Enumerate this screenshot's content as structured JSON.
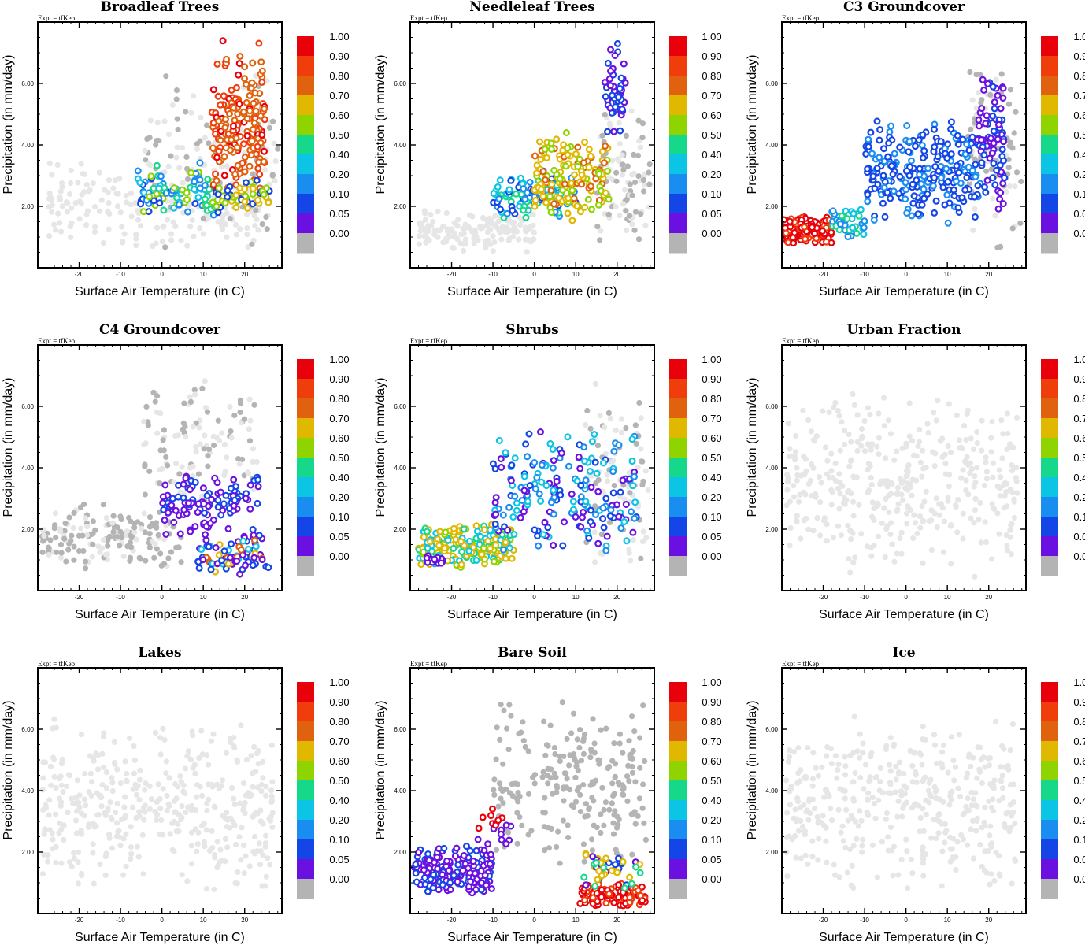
{
  "figure": {
    "expt_label": "Expt = tfKep"
  },
  "colorbar": {
    "levels": [
      {
        "label": "1.00",
        "color": "#e8000b"
      },
      {
        "label": "0.90",
        "color": "#f03d0c"
      },
      {
        "label": "0.80",
        "color": "#e0620e"
      },
      {
        "label": "0.70",
        "color": "#e1b800"
      },
      {
        "label": "0.60",
        "color": "#8fd400"
      },
      {
        "label": "0.50",
        "color": "#15d88a"
      },
      {
        "label": "0.40",
        "color": "#0cc4e3"
      },
      {
        "label": "0.20",
        "color": "#1a8ef0"
      },
      {
        "label": "0.10",
        "color": "#1445e6"
      },
      {
        "label": "0.05",
        "color": "#6a10e0"
      },
      {
        "label": "0.00",
        "color": "#b4b4b4"
      }
    ]
  },
  "chart_data": [
    {
      "type": "scatter",
      "title": "Broadleaf Trees",
      "xlabel": "Surface Air Temperature (in C)",
      "ylabel": "Precipitation (in mm/day)",
      "xlim": [
        -30,
        29
      ],
      "ylim": [
        0,
        8
      ],
      "xticks": [
        "-20",
        "-10",
        "0",
        "10",
        "20"
      ],
      "yticks": [
        "2.00",
        "4.00",
        "6.00"
      ],
      "clusters": [
        {
          "x": [
            -28,
            25
          ],
          "y": [
            0.5,
            3.5
          ],
          "n": 200,
          "colors": [
            "#e6e6e6"
          ]
        },
        {
          "x": [
            -5,
            28
          ],
          "y": [
            0.3,
            6.5
          ],
          "n": 120,
          "colors": [
            "#e6e6e6",
            "#b4b4b4"
          ]
        },
        {
          "x": [
            -6,
            13
          ],
          "y": [
            1.5,
            3.5
          ],
          "n": 90,
          "colors": [
            "#0cc4e3",
            "#15d88a",
            "#8fd400",
            "#1a8ef0",
            "#1445e6"
          ]
        },
        {
          "x": [
            12,
            25
          ],
          "y": [
            2.0,
            7.5
          ],
          "n": 180,
          "colors": [
            "#e0620e",
            "#e0620e",
            "#f03d0c",
            "#e8000b"
          ]
        },
        {
          "x": [
            13,
            26
          ],
          "y": [
            1.6,
            3.0
          ],
          "n": 50,
          "colors": [
            "#e1b800",
            "#8fd400",
            "#1445e6"
          ]
        }
      ]
    },
    {
      "type": "scatter",
      "title": "Needleleaf Trees",
      "xlabel": "Surface Air Temperature (in C)",
      "ylabel": "Precipitation (in mm/day)",
      "xlim": [
        -30,
        29
      ],
      "ylim": [
        0,
        8
      ],
      "xticks": [
        "-20",
        "-10",
        "0",
        "10",
        "20"
      ],
      "yticks": [
        "2.00",
        "4.00",
        "6.00"
      ],
      "clusters": [
        {
          "x": [
            -28,
            0
          ],
          "y": [
            0.5,
            2.0
          ],
          "n": 150,
          "colors": [
            "#e6e6e6"
          ]
        },
        {
          "x": [
            15,
            28
          ],
          "y": [
            0.3,
            5.5
          ],
          "n": 100,
          "colors": [
            "#e6e6e6",
            "#b4b4b4"
          ]
        },
        {
          "x": [
            -10,
            10
          ],
          "y": [
            1.5,
            3.2
          ],
          "n": 110,
          "colors": [
            "#1a8ef0",
            "#0cc4e3",
            "#15d88a",
            "#1445e6"
          ]
        },
        {
          "x": [
            0,
            18
          ],
          "y": [
            1.5,
            4.5
          ],
          "n": 150,
          "colors": [
            "#e1b800",
            "#e0620e",
            "#8fd400",
            "#e1b800"
          ]
        },
        {
          "x": [
            17,
            22
          ],
          "y": [
            4.0,
            7.5
          ],
          "n": 50,
          "colors": [
            "#6a10e0",
            "#1445e6"
          ]
        }
      ]
    },
    {
      "type": "scatter",
      "title": "C3 Groundcover",
      "xlabel": "Surface Air Temperature (in C)",
      "ylabel": "Precipitation (in mm/day)",
      "xlim": [
        -30,
        29
      ],
      "ylim": [
        0,
        8
      ],
      "xticks": [
        "-20",
        "-10",
        "0",
        "10",
        "20"
      ],
      "yticks": [
        "2.00",
        "4.00",
        "6.00"
      ],
      "clusters": [
        {
          "x": [
            15,
            28
          ],
          "y": [
            0.5,
            7.0
          ],
          "n": 80,
          "colors": [
            "#e6e6e6",
            "#b4b4b4"
          ]
        },
        {
          "x": [
            -30,
            -18
          ],
          "y": [
            0.7,
            1.7
          ],
          "n": 180,
          "colors": [
            "#e8000b",
            "#e8000b",
            "#f03d0c"
          ]
        },
        {
          "x": [
            -18,
            -10
          ],
          "y": [
            1.0,
            2.0
          ],
          "n": 50,
          "colors": [
            "#0cc4e3",
            "#15d88a",
            "#1a8ef0"
          ]
        },
        {
          "x": [
            -10,
            18
          ],
          "y": [
            1.2,
            5.0
          ],
          "n": 260,
          "colors": [
            "#1445e6",
            "#1a8ef0",
            "#1445e6"
          ]
        },
        {
          "x": [
            17,
            24
          ],
          "y": [
            1.8,
            6.5
          ],
          "n": 80,
          "colors": [
            "#6a10e0",
            "#1445e6"
          ]
        }
      ]
    },
    {
      "type": "scatter",
      "title": "C4 Groundcover",
      "xlabel": "Surface Air Temperature (in C)",
      "ylabel": "Precipitation (in mm/day)",
      "xlim": [
        -30,
        29
      ],
      "ylim": [
        0,
        8
      ],
      "xticks": [
        "-20",
        "-10",
        "0",
        "10",
        "20"
      ],
      "yticks": [
        "2.00",
        "4.00",
        "6.00"
      ],
      "clusters": [
        {
          "x": [
            -29,
            5
          ],
          "y": [
            0.5,
            3.0
          ],
          "n": 170,
          "colors": [
            "#e6e6e6",
            "#b4b4b4",
            "#b4b4b4"
          ]
        },
        {
          "x": [
            -5,
            23
          ],
          "y": [
            2.5,
            7.0
          ],
          "n": 120,
          "colors": [
            "#e6e6e6",
            "#b4b4b4"
          ]
        },
        {
          "x": [
            0,
            25
          ],
          "y": [
            1.5,
            4.0
          ],
          "n": 110,
          "colors": [
            "#6a10e0",
            "#6a10e0",
            "#1445e6"
          ]
        },
        {
          "x": [
            8,
            26
          ],
          "y": [
            0.4,
            1.8
          ],
          "n": 70,
          "colors": [
            "#e1b800",
            "#0cc4e3",
            "#e0620e",
            "#1445e6",
            "#6a10e0"
          ]
        }
      ]
    },
    {
      "type": "scatter",
      "title": "Shrubs",
      "xlabel": "Surface Air Temperature (in C)",
      "ylabel": "Precipitation (in mm/day)",
      "xlim": [
        -30,
        29
      ],
      "ylim": [
        0,
        8
      ],
      "xticks": [
        "-20",
        "-10",
        "0",
        "10",
        "20"
      ],
      "yticks": [
        "2.00",
        "4.00",
        "6.00"
      ],
      "clusters": [
        {
          "x": [
            12,
            28
          ],
          "y": [
            0.4,
            7.0
          ],
          "n": 90,
          "colors": [
            "#e6e6e6",
            "#b4b4b4"
          ]
        },
        {
          "x": [
            -28,
            -5
          ],
          "y": [
            0.7,
            2.2
          ],
          "n": 220,
          "colors": [
            "#e1b800",
            "#8fd400",
            "#15d88a",
            "#0cc4e3",
            "#e1b800"
          ]
        },
        {
          "x": [
            -10,
            25
          ],
          "y": [
            1.0,
            5.5
          ],
          "n": 200,
          "colors": [
            "#1445e6",
            "#1a8ef0",
            "#6a10e0",
            "#0cc4e3"
          ]
        },
        {
          "x": [
            -26,
            -22
          ],
          "y": [
            0.8,
            1.2
          ],
          "n": 20,
          "colors": [
            "#6a10e0"
          ]
        }
      ]
    },
    {
      "type": "scatter",
      "title": "Urban Fraction",
      "xlabel": "Surface Air Temperature (in C)",
      "ylabel": "Precipitation (in mm/day)",
      "xlim": [
        -30,
        29
      ],
      "ylim": [
        0,
        8
      ],
      "xticks": [
        "-20",
        "-10",
        "0",
        "10",
        "20"
      ],
      "yticks": [
        "2.00",
        "4.00",
        "6.00"
      ],
      "clusters": [
        {
          "x": [
            -29,
            27
          ],
          "y": [
            0.4,
            6.5
          ],
          "n": 400,
          "colors": [
            "#e6e6e6"
          ]
        }
      ]
    },
    {
      "type": "scatter",
      "title": "Lakes",
      "xlabel": "Surface Air Temperature (in C)",
      "ylabel": "Precipitation (in mm/day)",
      "xlim": [
        -30,
        29
      ],
      "ylim": [
        0,
        8
      ],
      "xticks": [
        "-20",
        "-10",
        "0",
        "10",
        "20"
      ],
      "yticks": [
        "2.00",
        "4.00",
        "6.00"
      ],
      "clusters": [
        {
          "x": [
            -29,
            27
          ],
          "y": [
            0.4,
            6.5
          ],
          "n": 400,
          "colors": [
            "#e6e6e6"
          ]
        }
      ]
    },
    {
      "type": "scatter",
      "title": "Bare Soil",
      "xlabel": "Surface Air Temperature (in C)",
      "ylabel": "Precipitation (in mm/day)",
      "xlim": [
        -30,
        29
      ],
      "ylim": [
        0,
        8
      ],
      "xticks": [
        "-20",
        "-10",
        "0",
        "10",
        "20"
      ],
      "yticks": [
        "2.00",
        "4.00",
        "6.00"
      ],
      "clusters": [
        {
          "x": [
            -10,
            27
          ],
          "y": [
            1.5,
            7.0
          ],
          "n": 230,
          "colors": [
            "#b4b4b4"
          ]
        },
        {
          "x": [
            -29,
            -10
          ],
          "y": [
            0.6,
            2.2
          ],
          "n": 190,
          "colors": [
            "#6a10e0",
            "#6a10e0",
            "#1445e6"
          ]
        },
        {
          "x": [
            -15,
            -5
          ],
          "y": [
            1.8,
            3.5
          ],
          "n": 20,
          "colors": [
            "#6a10e0",
            "#e8000b"
          ]
        },
        {
          "x": [
            11,
            27
          ],
          "y": [
            0.2,
            1.0
          ],
          "n": 90,
          "colors": [
            "#e8000b",
            "#e8000b",
            "#f03d0c"
          ]
        },
        {
          "x": [
            12,
            26
          ],
          "y": [
            0.8,
            2.0
          ],
          "n": 40,
          "colors": [
            "#e1b800",
            "#15d88a",
            "#1445e6",
            "#6a10e0"
          ]
        }
      ]
    },
    {
      "type": "scatter",
      "title": "Ice",
      "xlabel": "Surface Air Temperature (in C)",
      "ylabel": "Precipitation (in mm/day)",
      "xlim": [
        -30,
        29
      ],
      "ylim": [
        0,
        8
      ],
      "xticks": [
        "-20",
        "-10",
        "0",
        "10",
        "20"
      ],
      "yticks": [
        "2.00",
        "4.00",
        "6.00"
      ],
      "clusters": [
        {
          "x": [
            -29,
            27
          ],
          "y": [
            0.4,
            6.5
          ],
          "n": 400,
          "colors": [
            "#e6e6e6"
          ]
        }
      ]
    }
  ]
}
